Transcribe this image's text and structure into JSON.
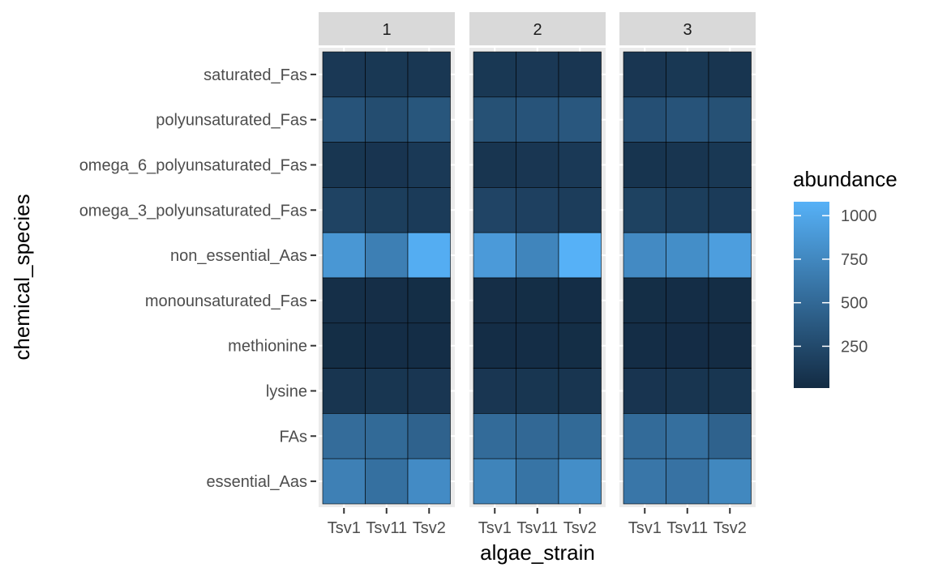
{
  "chart_data": {
    "type": "heatmap",
    "title": "",
    "xlabel": "algae_strain",
    "ylabel": "chemical_species",
    "facets": [
      "1",
      "2",
      "3"
    ],
    "x_categories": [
      "Tsv1",
      "Tsv11",
      "Tsv2"
    ],
    "x_tick_labels": [
      "Tsv1",
      "Tsv11",
      "Tsv2"
    ],
    "y_categories": [
      "saturated_Fas",
      "polyunsaturated_Fas",
      "omega_6_polyunsaturated_Fas",
      "omega_3_polyunsaturated_Fas",
      "non_essential_Aas",
      "monounsaturated_Fas",
      "methionine",
      "lysine",
      "FAs",
      "essential_Aas"
    ],
    "values": {
      "1": [
        [
          115,
          110,
          105
        ],
        [
          330,
          280,
          350
        ],
        [
          95,
          85,
          120
        ],
        [
          200,
          160,
          140
        ],
        [
          870,
          680,
          1050
        ],
        [
          40,
          35,
          30
        ],
        [
          30,
          28,
          25
        ],
        [
          90,
          95,
          100
        ],
        [
          530,
          510,
          450
        ],
        [
          690,
          560,
          780
        ]
      ],
      "2": [
        [
          110,
          115,
          100
        ],
        [
          310,
          330,
          360
        ],
        [
          90,
          100,
          120
        ],
        [
          210,
          180,
          150
        ],
        [
          900,
          730,
          1080
        ],
        [
          35,
          30,
          28
        ],
        [
          28,
          25,
          30
        ],
        [
          100,
          95,
          90
        ],
        [
          520,
          500,
          510
        ],
        [
          720,
          590,
          800
        ]
      ],
      "3": [
        [
          100,
          110,
          90
        ],
        [
          300,
          330,
          310
        ],
        [
          80,
          90,
          110
        ],
        [
          190,
          160,
          140
        ],
        [
          770,
          800,
          930
        ],
        [
          30,
          28,
          22
        ],
        [
          25,
          20,
          18
        ],
        [
          85,
          90,
          95
        ],
        [
          520,
          550,
          450
        ],
        [
          610,
          580,
          750
        ]
      ]
    },
    "legend": {
      "title": "abundance",
      "breaks": [
        250,
        500,
        750,
        1000
      ],
      "labels": [
        "250",
        "500",
        "750",
        "1000"
      ],
      "min": 10,
      "max": 1080,
      "low_color": "#132B43",
      "high_color": "#56B1F7",
      "position": "right"
    },
    "panel_background": "#EBEBEB",
    "strip_background": "#D9D9D9",
    "grid": true
  }
}
